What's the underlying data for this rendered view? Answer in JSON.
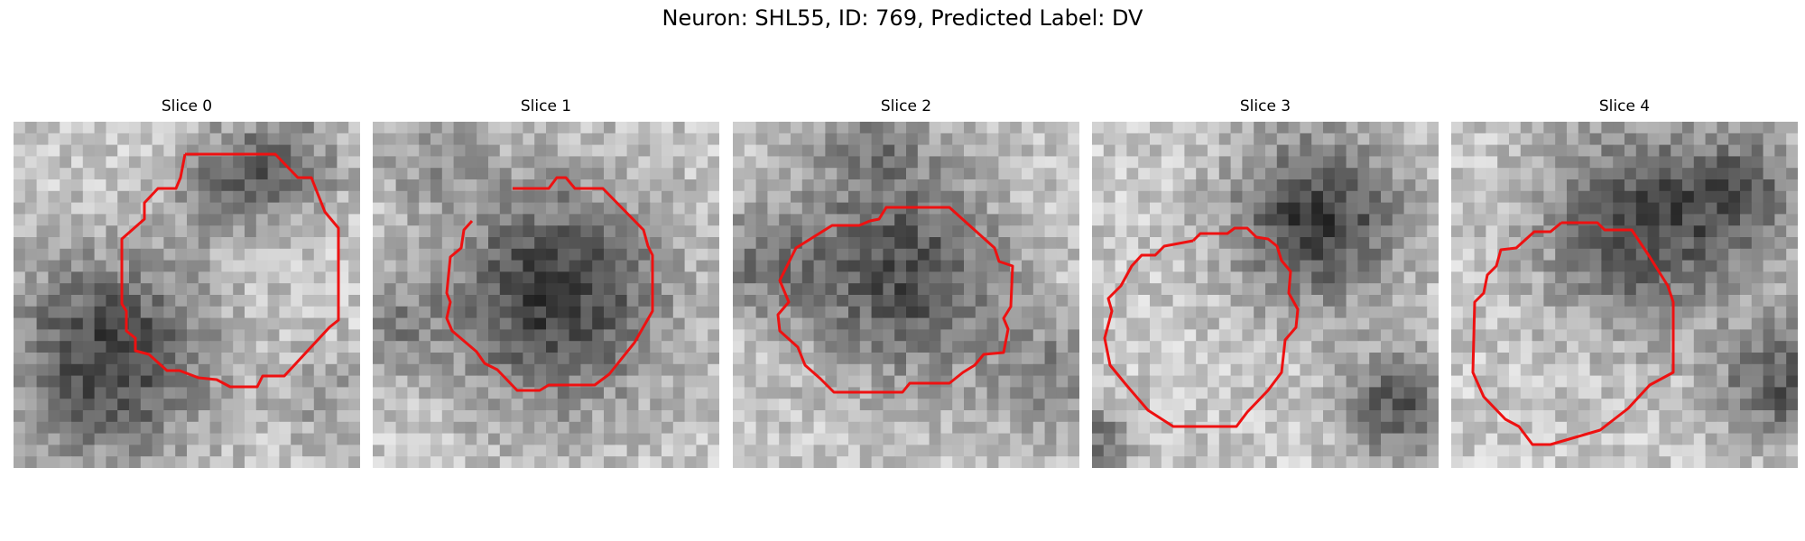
{
  "figure": {
    "title": "Neuron: SHL55, ID: 769, Predicted Label: DV",
    "outline_color": "#ee1111"
  },
  "panels": [
    {
      "title": "Slice 0",
      "image": "grayscale-microscopy-patch",
      "blobs": [
        [
          0.28,
          0.68,
          0.3,
          1.0
        ],
        [
          0.62,
          0.18,
          0.16,
          0.6
        ],
        [
          0.8,
          0.12,
          0.18,
          0.5
        ],
        [
          0.9,
          0.8,
          0.15,
          0.3
        ]
      ]
    },
    {
      "title": "Slice 1",
      "image": "grayscale-microscopy-patch",
      "blobs": [
        [
          0.52,
          0.5,
          0.34,
          1.0
        ],
        [
          0.05,
          0.6,
          0.14,
          0.4
        ],
        [
          0.15,
          0.1,
          0.16,
          0.3
        ]
      ]
    },
    {
      "title": "Slice 2",
      "image": "grayscale-microscopy-patch",
      "blobs": [
        [
          0.5,
          0.45,
          0.3,
          0.9
        ],
        [
          0.08,
          0.4,
          0.18,
          0.5
        ],
        [
          0.92,
          0.75,
          0.18,
          0.5
        ],
        [
          0.4,
          0.05,
          0.2,
          0.45
        ]
      ]
    },
    {
      "title": "Slice 3",
      "image": "grayscale-microscopy-patch",
      "blobs": [
        [
          0.65,
          0.28,
          0.26,
          1.0
        ],
        [
          0.88,
          0.82,
          0.16,
          0.8
        ],
        [
          0.02,
          0.92,
          0.1,
          0.6
        ]
      ]
    },
    {
      "title": "Slice 4",
      "image": "grayscale-microscopy-patch",
      "blobs": [
        [
          0.55,
          0.3,
          0.3,
          0.9
        ],
        [
          0.95,
          0.75,
          0.18,
          0.8
        ],
        [
          0.85,
          0.2,
          0.18,
          0.6
        ]
      ]
    }
  ]
}
